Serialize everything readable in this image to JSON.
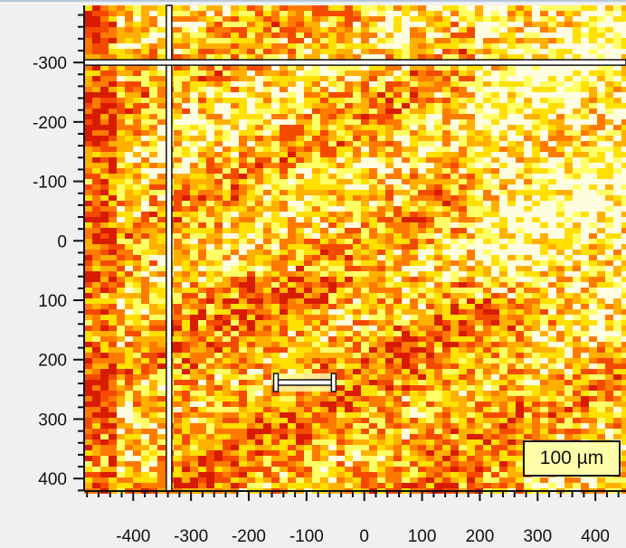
{
  "image": {
    "colormap": [
      "#fffde0",
      "#ffff66",
      "#ffe000",
      "#ffb000",
      "#ff7a00",
      "#f44a00",
      "#d81c00"
    ]
  },
  "axes": {
    "x_ticks": [
      -400,
      -300,
      -200,
      -100,
      0,
      100,
      200,
      300,
      400
    ],
    "y_ticks": [
      -300,
      -200,
      -100,
      0,
      100,
      200,
      300,
      400
    ],
    "x_range": [
      -485,
      453
    ],
    "y_range": [
      -396,
      421
    ],
    "x_minor_step": 20,
    "y_minor_step": 20
  },
  "crosshair": {
    "x": -338,
    "y": -300
  },
  "scale_bar": {
    "length_um": 100,
    "label": "100 µm"
  }
}
